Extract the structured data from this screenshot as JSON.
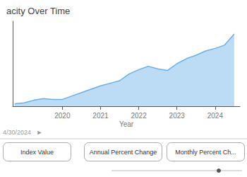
{
  "chart_data": {
    "type": "area",
    "title": "acity Over Time",
    "xlabel": "Year",
    "x": [
      2018.75,
      2019.0,
      2019.25,
      2019.5,
      2019.75,
      2020.0,
      2020.25,
      2020.5,
      2020.75,
      2021.0,
      2021.25,
      2021.5,
      2021.75,
      2022.0,
      2022.25,
      2022.5,
      2022.75,
      2023.0,
      2023.25,
      2023.5,
      2023.75,
      2024.0,
      2024.25,
      2024.5
    ],
    "values": [
      0.03,
      0.04,
      0.07,
      0.09,
      0.08,
      0.08,
      0.12,
      0.16,
      0.2,
      0.24,
      0.27,
      0.3,
      0.38,
      0.43,
      0.47,
      0.44,
      0.42,
      0.5,
      0.56,
      0.6,
      0.65,
      0.68,
      0.72,
      0.85
    ],
    "color": "#6ab0e8",
    "xlim": [
      2018.7,
      2024.65
    ],
    "xticks": [
      2020,
      2021,
      2022,
      2023,
      2024
    ],
    "ylim": [
      0,
      1
    ],
    "yticks": [],
    "tick_labels": "x",
    "grid": false,
    "annotations": [
      "4/30/2024   ►",
      "Index Value",
      "Annual Percent Change",
      "Monthly Percent Ch..."
    ]
  }
}
